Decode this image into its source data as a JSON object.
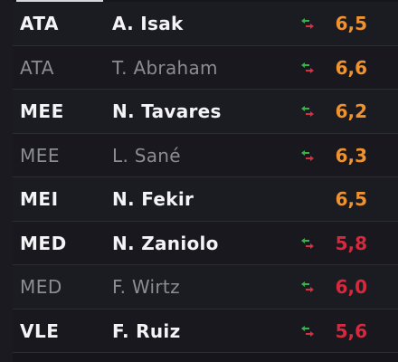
{
  "colors": {
    "background": "#15151b",
    "rating_orange": "#f0922d",
    "rating_red": "#d8283e",
    "sub_in_green": "#36b24a",
    "sub_out_red": "#d43242"
  },
  "players": [
    {
      "position": "ATA",
      "name": "A. Isak",
      "rating": "6,5",
      "rating_color": "orange",
      "substitution_icon": true,
      "active": true
    },
    {
      "position": "ATA",
      "name": "T. Abraham",
      "rating": "6,6",
      "rating_color": "orange",
      "substitution_icon": true,
      "active": false
    },
    {
      "position": "MEE",
      "name": "N. Tavares",
      "rating": "6,2",
      "rating_color": "orange",
      "substitution_icon": true,
      "active": true
    },
    {
      "position": "MEE",
      "name": "L. Sané",
      "rating": "6,3",
      "rating_color": "orange",
      "substitution_icon": true,
      "active": false
    },
    {
      "position": "MEI",
      "name": "N. Fekir",
      "rating": "6,5",
      "rating_color": "orange",
      "substitution_icon": false,
      "active": true
    },
    {
      "position": "MED",
      "name": "N. Zaniolo",
      "rating": "5,8",
      "rating_color": "red",
      "substitution_icon": true,
      "active": true
    },
    {
      "position": "MED",
      "name": "F. Wirtz",
      "rating": "6,0",
      "rating_color": "red",
      "substitution_icon": true,
      "active": false
    },
    {
      "position": "VLE",
      "name": "F. Ruiz",
      "rating": "5,6",
      "rating_color": "red",
      "substitution_icon": true,
      "active": true
    }
  ]
}
